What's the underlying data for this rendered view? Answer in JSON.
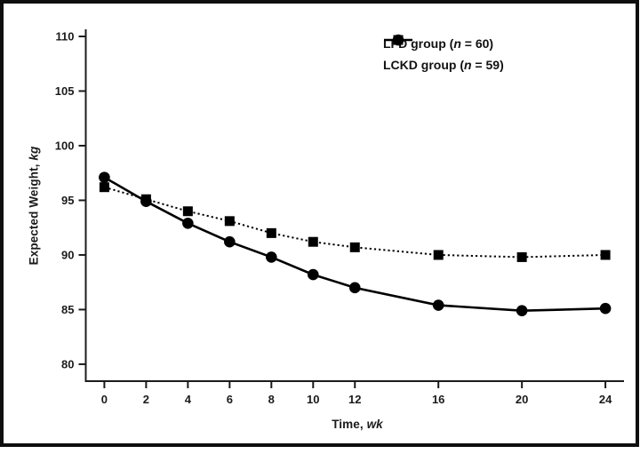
{
  "figure": {
    "background": "#ffffff",
    "frame_color": "#0e0e0e",
    "ink": "#000000",
    "text_color": "#1b1b1b"
  },
  "chart_data": {
    "type": "line",
    "title": "",
    "xlabel_parts": {
      "main": "Time, ",
      "italic": "wk"
    },
    "ylabel_parts": {
      "main": "Expected Weight, ",
      "italic": "kg"
    },
    "x": [
      0,
      2,
      4,
      6,
      8,
      10,
      12,
      16,
      20,
      24
    ],
    "x_tick_labels": [
      "0",
      "2",
      "4",
      "6",
      "8",
      "10",
      "12",
      "16",
      "20",
      "24"
    ],
    "y_ticks": [
      80,
      85,
      90,
      95,
      100,
      105,
      110
    ],
    "y_tick_labels": [
      "80",
      "85",
      "90",
      "95",
      "100",
      "105",
      "110"
    ],
    "xlim": [
      -0.89,
      24.89
    ],
    "ylim": [
      78.45,
      110.65
    ],
    "grid": false,
    "legend_position": "top-right",
    "series": [
      {
        "id": "lfd",
        "label_prefix": "LFD group (",
        "label_n": "n",
        "label_suffix": " = 60)",
        "marker": "square",
        "line_style": "dotted",
        "color": "#000000",
        "values": [
          96.2,
          95.1,
          94.0,
          93.1,
          92.0,
          91.2,
          90.7,
          90.0,
          89.8,
          90.0
        ]
      },
      {
        "id": "lckd",
        "label_prefix": "LCKD group (",
        "label_n": "n",
        "label_suffix": " = 59)",
        "marker": "circle",
        "line_style": "solid",
        "color": "#000000",
        "values": [
          97.1,
          94.9,
          92.9,
          91.2,
          89.8,
          88.2,
          87.0,
          85.4,
          84.9,
          85.1
        ]
      }
    ]
  }
}
